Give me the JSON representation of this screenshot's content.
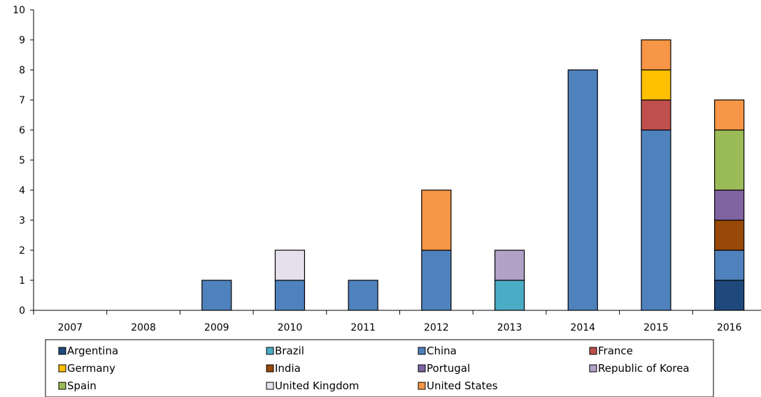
{
  "chart_data": {
    "type": "bar",
    "stacked": true,
    "categories": [
      "2007",
      "2008",
      "2009",
      "2010",
      "2011",
      "2012",
      "2013",
      "2014",
      "2015",
      "2016"
    ],
    "ylim": [
      0,
      10
    ],
    "yticks": [
      "0",
      "1",
      "2",
      "3",
      "4",
      "5",
      "6",
      "7",
      "8",
      "9",
      "10"
    ],
    "grid": false,
    "legend_position": "bottom",
    "series": [
      {
        "name": "Argentina",
        "color": "#1f497d",
        "values": [
          0,
          0,
          0,
          0,
          0,
          0,
          0,
          0,
          0,
          1
        ]
      },
      {
        "name": "Brazil",
        "color": "#4bacc6",
        "values": [
          0,
          0,
          0,
          0,
          0,
          0,
          1,
          0,
          0,
          0
        ]
      },
      {
        "name": "China",
        "color": "#4f81bd",
        "values": [
          0,
          0,
          1,
          1,
          1,
          2,
          0,
          8,
          6,
          1
        ]
      },
      {
        "name": "France",
        "color": "#c0504d",
        "values": [
          0,
          0,
          0,
          0,
          0,
          0,
          0,
          0,
          1,
          0
        ]
      },
      {
        "name": "Germany",
        "color": "#ffc000",
        "values": [
          0,
          0,
          0,
          0,
          0,
          0,
          0,
          0,
          1,
          0
        ]
      },
      {
        "name": "India",
        "color": "#984807",
        "values": [
          0,
          0,
          0,
          0,
          0,
          0,
          0,
          0,
          0,
          1
        ]
      },
      {
        "name": "Portugal",
        "color": "#8064a2",
        "values": [
          0,
          0,
          0,
          0,
          0,
          0,
          0,
          0,
          0,
          1
        ]
      },
      {
        "name": "Republic of Korea",
        "color": "#b2a2c7",
        "values": [
          0,
          0,
          0,
          0,
          0,
          0,
          1,
          0,
          0,
          0
        ]
      },
      {
        "name": "Spain",
        "color": "#9bbb59",
        "values": [
          0,
          0,
          0,
          0,
          0,
          0,
          0,
          0,
          0,
          2
        ]
      },
      {
        "name": "United Kingdom",
        "color": "#e6e0ec",
        "values": [
          0,
          0,
          0,
          1,
          0,
          0,
          0,
          0,
          0,
          0
        ]
      },
      {
        "name": "United States",
        "color": "#f79646",
        "values": [
          0,
          0,
          0,
          0,
          0,
          2,
          0,
          0,
          1,
          1
        ]
      }
    ]
  }
}
